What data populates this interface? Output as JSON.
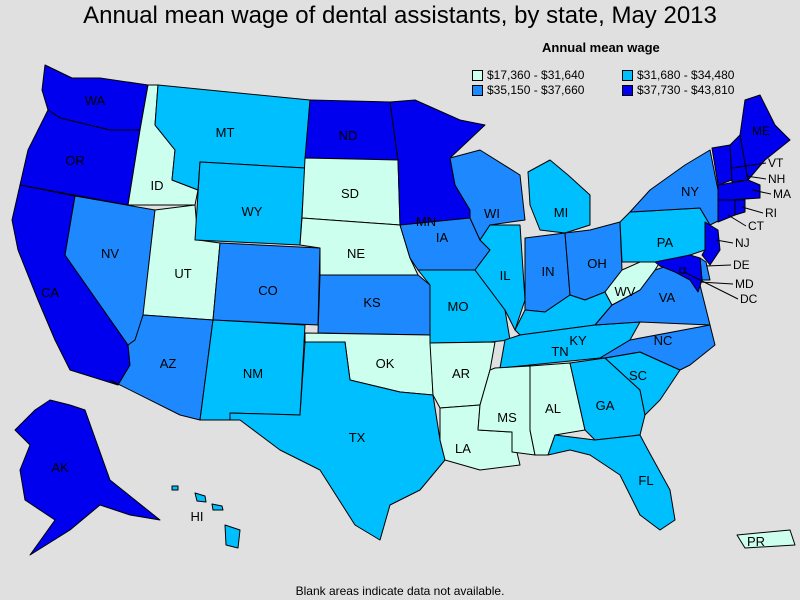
{
  "title": "Annual mean wage of dental assistants, by state, May 2013",
  "legend": {
    "title": "Annual mean wage",
    "bins": [
      {
        "label": "$17,360 - $31,640",
        "color": "#ccffee"
      },
      {
        "label": "$31,680 - $34,480",
        "color": "#00bfff"
      },
      {
        "label": "$35,150 - $37,660",
        "color": "#1e88ff"
      },
      {
        "label": "$37,730 - $43,810",
        "color": "#0000ee"
      }
    ]
  },
  "footnote": "Blank areas indicate data not available.",
  "states": [
    {
      "abbr": "WA",
      "bin": 3
    },
    {
      "abbr": "OR",
      "bin": 3
    },
    {
      "abbr": "CA",
      "bin": 3
    },
    {
      "abbr": "ID",
      "bin": 0
    },
    {
      "abbr": "NV",
      "bin": 2
    },
    {
      "abbr": "UT",
      "bin": 0
    },
    {
      "abbr": "AZ",
      "bin": 2
    },
    {
      "abbr": "MT",
      "bin": 1
    },
    {
      "abbr": "WY",
      "bin": 1
    },
    {
      "abbr": "CO",
      "bin": 2
    },
    {
      "abbr": "NM",
      "bin": 1
    },
    {
      "abbr": "ND",
      "bin": 3
    },
    {
      "abbr": "SD",
      "bin": 0
    },
    {
      "abbr": "NE",
      "bin": 0
    },
    {
      "abbr": "KS",
      "bin": 2
    },
    {
      "abbr": "OK",
      "bin": 0
    },
    {
      "abbr": "TX",
      "bin": 1
    },
    {
      "abbr": "MN",
      "bin": 3
    },
    {
      "abbr": "IA",
      "bin": 2
    },
    {
      "abbr": "MO",
      "bin": 1
    },
    {
      "abbr": "AR",
      "bin": 0
    },
    {
      "abbr": "LA",
      "bin": 0
    },
    {
      "abbr": "WI",
      "bin": 2
    },
    {
      "abbr": "IL",
      "bin": 1
    },
    {
      "abbr": "MI",
      "bin": 1
    },
    {
      "abbr": "IN",
      "bin": 2
    },
    {
      "abbr": "OH",
      "bin": 2
    },
    {
      "abbr": "KY",
      "bin": 1
    },
    {
      "abbr": "TN",
      "bin": 1
    },
    {
      "abbr": "MS",
      "bin": 0
    },
    {
      "abbr": "AL",
      "bin": 0
    },
    {
      "abbr": "GA",
      "bin": 1
    },
    {
      "abbr": "FL",
      "bin": 1
    },
    {
      "abbr": "SC",
      "bin": 1
    },
    {
      "abbr": "NC",
      "bin": 2
    },
    {
      "abbr": "VA",
      "bin": 2
    },
    {
      "abbr": "WV",
      "bin": 0
    },
    {
      "abbr": "PA",
      "bin": 1
    },
    {
      "abbr": "NY",
      "bin": 2
    },
    {
      "abbr": "NJ",
      "bin": 3
    },
    {
      "abbr": "DE",
      "bin": 2
    },
    {
      "abbr": "MD",
      "bin": 3
    },
    {
      "abbr": "DC",
      "bin": 3
    },
    {
      "abbr": "ME",
      "bin": 3
    },
    {
      "abbr": "VT",
      "bin": 3
    },
    {
      "abbr": "NH",
      "bin": 3
    },
    {
      "abbr": "MA",
      "bin": 3
    },
    {
      "abbr": "RI",
      "bin": 3
    },
    {
      "abbr": "CT",
      "bin": 3
    },
    {
      "abbr": "AK",
      "bin": 3
    },
    {
      "abbr": "HI",
      "bin": 1
    },
    {
      "abbr": "PR",
      "bin": 0
    }
  ]
}
